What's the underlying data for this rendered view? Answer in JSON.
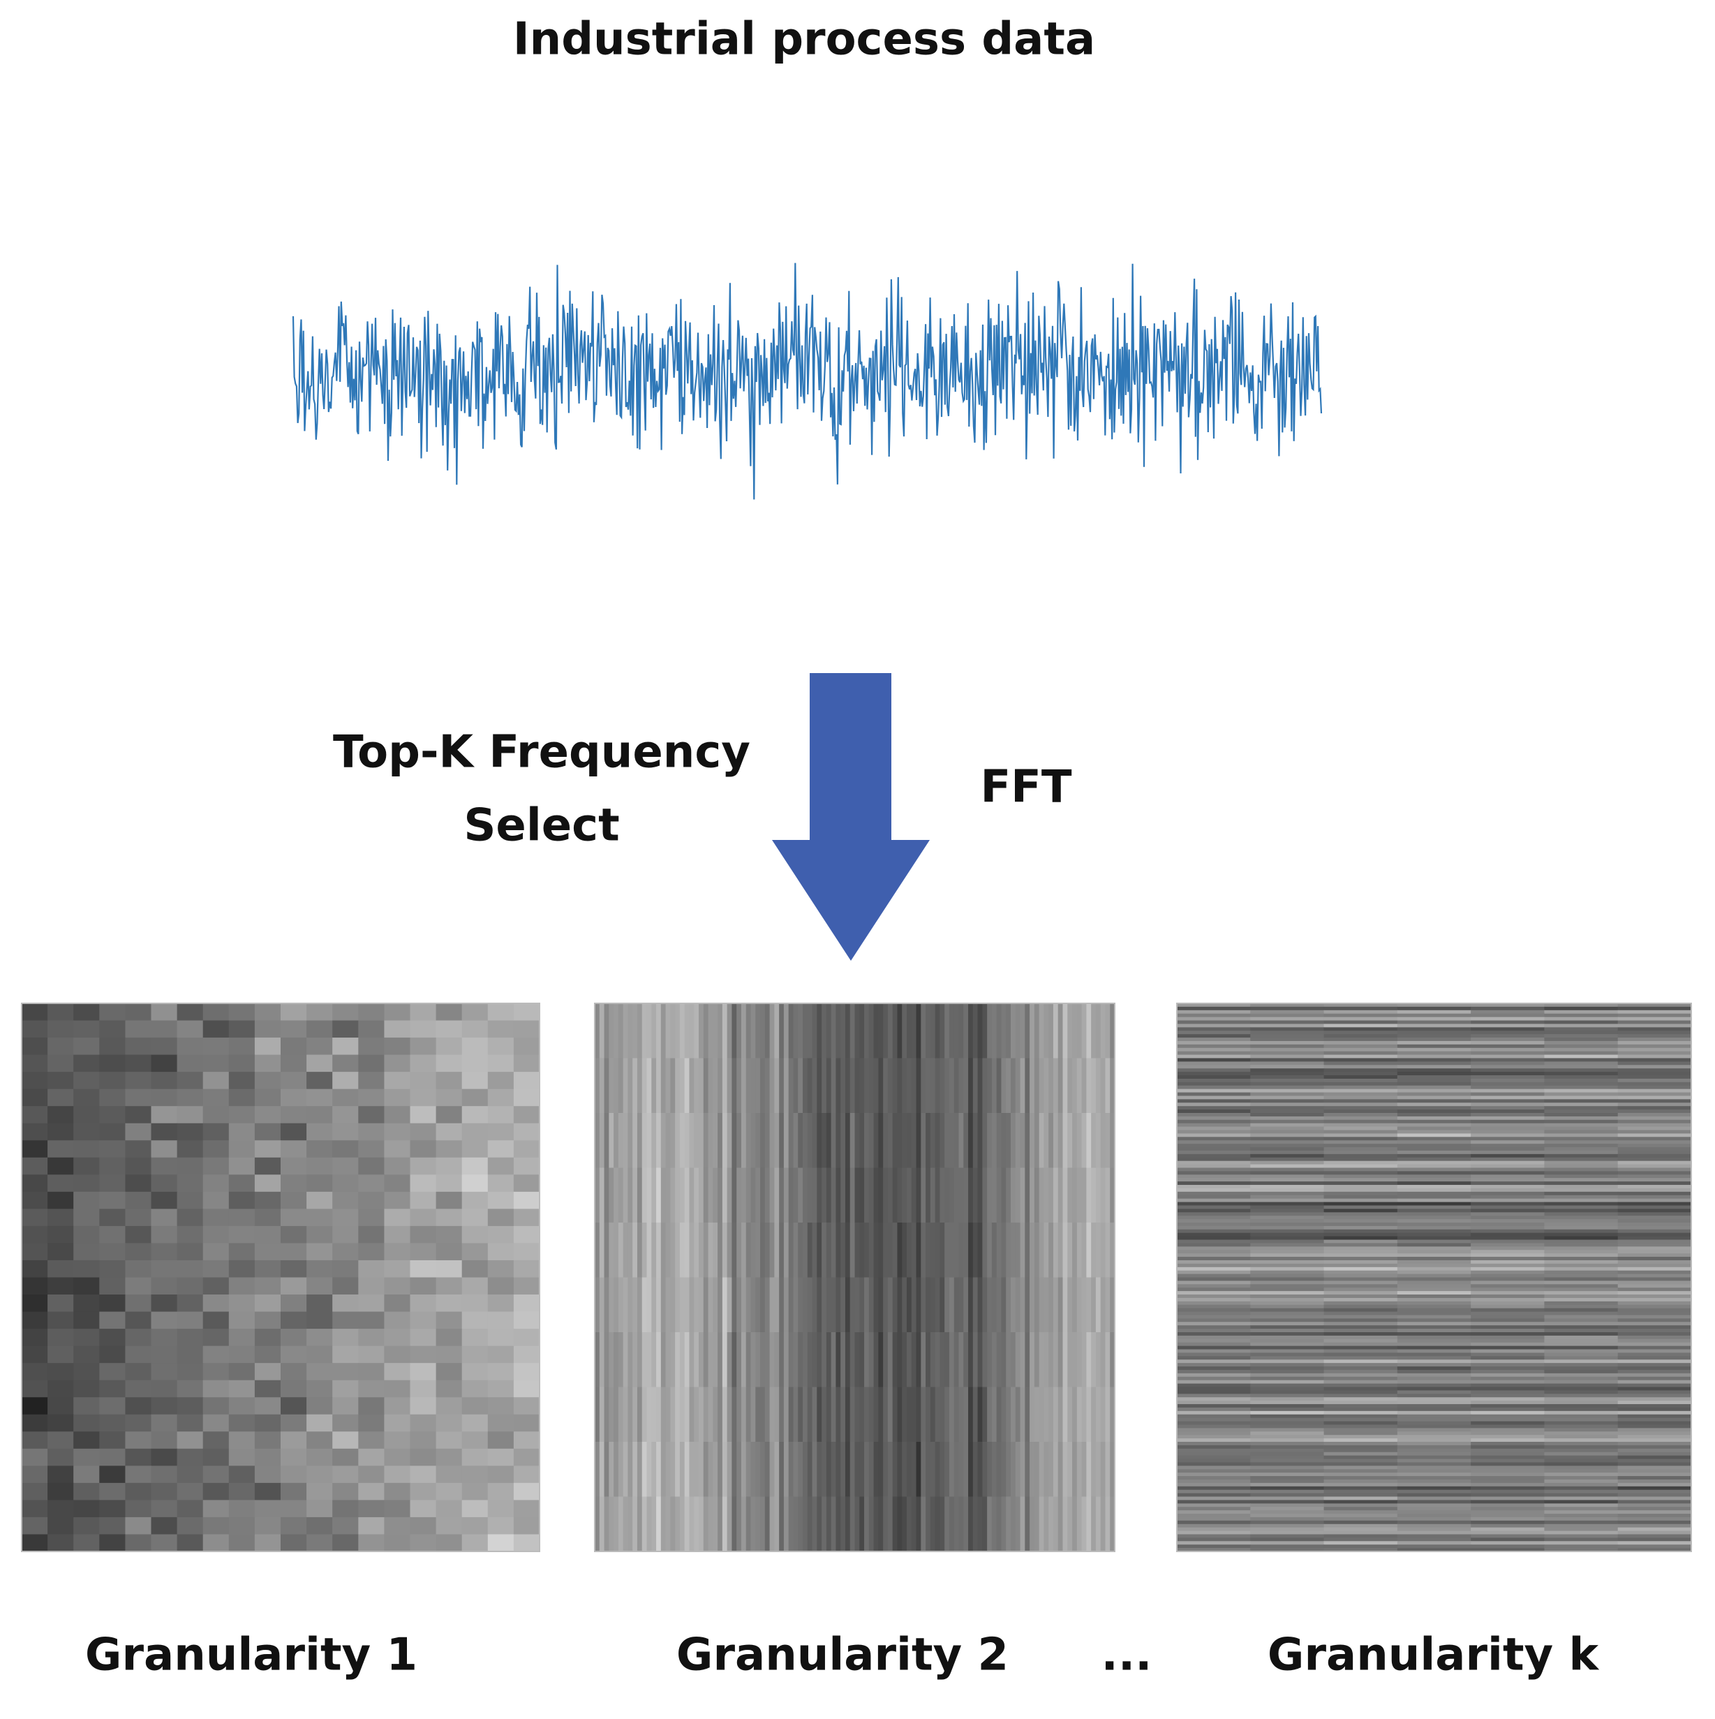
{
  "title": "Industrial process data",
  "arrow": {
    "left_label": [
      "Top-K Frequency",
      "Select"
    ],
    "right_label": "FFT"
  },
  "panels": [
    {
      "label": "Granularity 1"
    },
    {
      "label": "Granularity 2"
    },
    {
      "label": "Granularity k"
    }
  ],
  "ellipsis": "..."
}
